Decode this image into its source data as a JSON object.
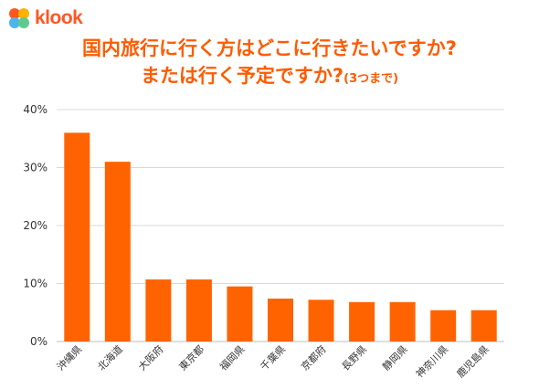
{
  "brand": {
    "name": "klook",
    "logo_icon": "klook-logo-icon",
    "logo_colors": [
      "#ff5722",
      "#ffb300",
      "#4cb6e8",
      "#5ccc8a"
    ]
  },
  "title": {
    "line1": "国内旅行に行く方はどこに行きたいですか?",
    "line2_main": "または行く予定ですか?",
    "line2_note": "(3つまで)"
  },
  "colors": {
    "title": "#ff5b00",
    "bar": "#ff6300",
    "grid": "#d9d9d9",
    "axis_text": "#333333"
  },
  "chart_data": {
    "type": "bar",
    "categories": [
      "沖縄県",
      "北海道",
      "大阪府",
      "東京都",
      "福岡県",
      "千葉県",
      "京都府",
      "長野県",
      "静岡県",
      "神奈川県",
      "鹿児島県"
    ],
    "values": [
      36,
      31,
      10.7,
      10.7,
      9.5,
      7.4,
      7.2,
      6.8,
      6.8,
      5.4,
      5.4
    ],
    "unit": "%",
    "ylim": [
      0,
      40
    ],
    "yticks": [
      0,
      10,
      20,
      30,
      40
    ],
    "ytick_labels": [
      "0%",
      "10%",
      "20%",
      "30%",
      "40%"
    ],
    "grid": true,
    "legend": "none"
  }
}
